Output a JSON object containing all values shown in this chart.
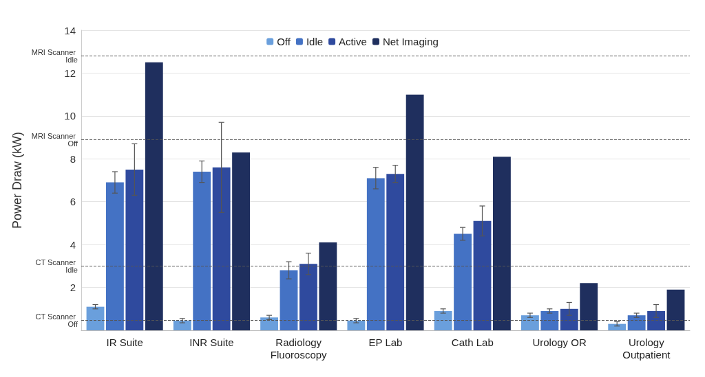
{
  "chart_data": {
    "type": "bar",
    "ylabel": "Power Draw (kW)",
    "categories": [
      "IR Suite",
      "INR Suite",
      "Radiology\nFluoroscopy",
      "EP Lab",
      "Cath Lab",
      "Urology OR",
      "Urology\nOutpatient"
    ],
    "series": [
      {
        "name": "Off",
        "color": "#6a9fdc",
        "values": [
          1.1,
          0.45,
          0.6,
          0.45,
          0.9,
          0.7,
          0.3
        ],
        "errors": [
          0.1,
          0.1,
          0.1,
          0.1,
          0.1,
          0.1,
          0.1
        ]
      },
      {
        "name": "Idle",
        "color": "#4472c4",
        "values": [
          6.9,
          7.4,
          2.8,
          7.1,
          4.5,
          0.9,
          0.7
        ],
        "errors": [
          0.5,
          0.5,
          0.4,
          0.5,
          0.3,
          0.1,
          0.1
        ]
      },
      {
        "name": "Active",
        "color": "#2f4a9e",
        "values": [
          7.5,
          7.6,
          3.1,
          7.3,
          5.1,
          1.0,
          0.9
        ],
        "errors": [
          1.2,
          2.1,
          0.5,
          0.4,
          0.7,
          0.3,
          0.3
        ]
      },
      {
        "name": "Net Imaging",
        "color": "#1f2f5e",
        "values": [
          12.5,
          8.3,
          4.1,
          11.0,
          8.1,
          2.2,
          1.9
        ]
      }
    ],
    "ylim": [
      0,
      14
    ],
    "yticks": [
      {
        "value": 0,
        "label": null
      },
      2,
      4,
      6,
      8,
      10,
      12,
      14
    ],
    "ref_lines": [
      {
        "axis": "y",
        "value": 12.8,
        "label": "MRI Scanner Idle",
        "line_style": "dashed",
        "color": "#555555"
      },
      {
        "axis": "y",
        "value": 8.9,
        "label": "MRI Scanner Off",
        "line_style": "dashed",
        "color": "#555555"
      },
      {
        "axis": "y",
        "value": 3.0,
        "label": "CT Scanner Idle",
        "line_style": "dashed",
        "color": "#555555"
      },
      {
        "axis": "y",
        "value": 0.46,
        "label": "CT Scanner Off",
        "line_style": "dashed",
        "color": "#555555"
      }
    ],
    "grid": "y",
    "legend": "top"
  }
}
